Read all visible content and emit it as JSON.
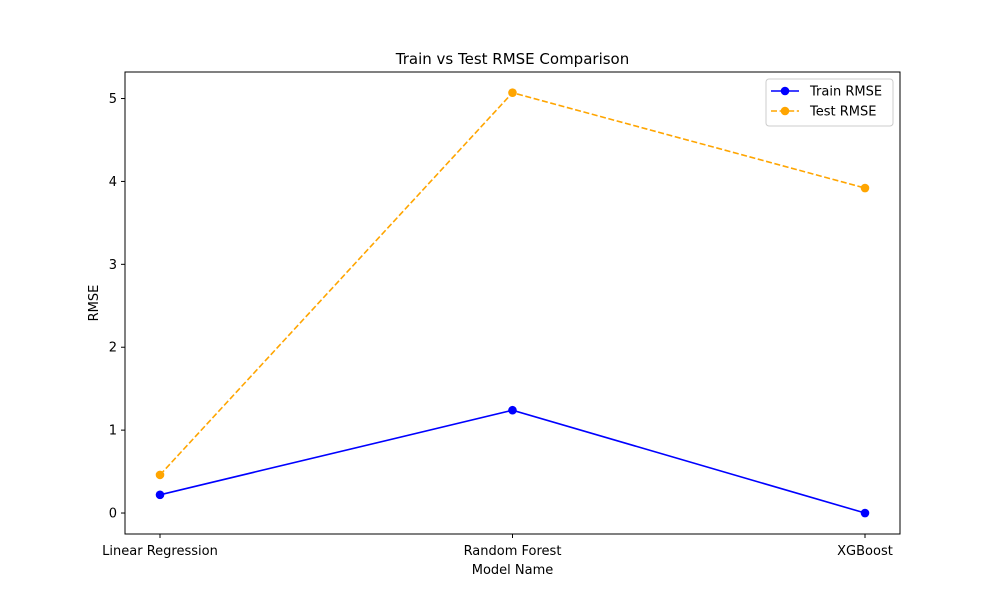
{
  "chart_data": {
    "type": "line",
    "title": "Train vs Test RMSE Comparison",
    "xlabel": "Model Name",
    "ylabel": "RMSE",
    "categories": [
      "Linear Regression",
      "Random Forest",
      "XGBoost"
    ],
    "yticks": [
      0,
      1,
      2,
      3,
      4,
      5
    ],
    "ylim": [
      -0.253,
      5.32
    ],
    "grid": false,
    "legend_position": "upper right",
    "series": [
      {
        "name": "Train RMSE",
        "values": [
          0.22,
          1.24,
          0.0
        ],
        "color": "#0000ff",
        "line_style": "solid",
        "marker": "circle"
      },
      {
        "name": "Test RMSE",
        "values": [
          0.46,
          5.07,
          3.92
        ],
        "color": "#ffa500",
        "line_style": "dashed",
        "marker": "circle"
      }
    ]
  }
}
